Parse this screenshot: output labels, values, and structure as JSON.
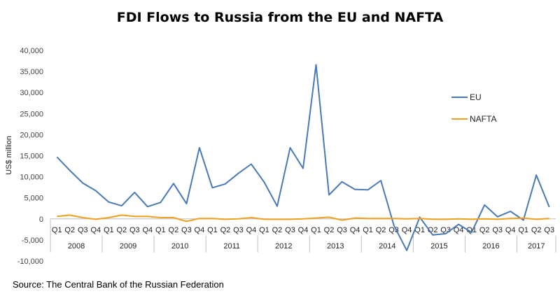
{
  "chart_data": {
    "type": "line",
    "title": "FDI Flows to Russia from the EU and NAFTA",
    "ylabel": "US$ million",
    "xlabel": "",
    "ylim": [
      -10000,
      40000
    ],
    "yticks": [
      -10000,
      -5000,
      0,
      5000,
      10000,
      15000,
      20000,
      25000,
      30000,
      35000,
      40000
    ],
    "ytick_labels": [
      "-10,000",
      "-5,000",
      "0",
      "5,000",
      "10,000",
      "15,000",
      "20,000",
      "25,000",
      "30,000",
      "35,000",
      "40,000"
    ],
    "grid": false,
    "legend_position": "right",
    "quarters": [
      "Q1",
      "Q2",
      "Q3",
      "Q4",
      "Q1",
      "Q2",
      "Q3",
      "Q4",
      "Q1",
      "Q2",
      "Q3",
      "Q4",
      "Q1",
      "Q2",
      "Q3",
      "Q4",
      "Q1",
      "Q2",
      "Q3",
      "Q4",
      "Q1",
      "Q2",
      "Q3",
      "Q4",
      "Q1",
      "Q2",
      "Q3",
      "Q4",
      "Q1",
      "Q2",
      "Q3",
      "Q4",
      "Q1",
      "Q2",
      "Q3",
      "Q4",
      "Q1",
      "Q2",
      "Q3"
    ],
    "years": [
      {
        "label": "2008",
        "quarters": 4
      },
      {
        "label": "2009",
        "quarters": 4
      },
      {
        "label": "2010",
        "quarters": 4
      },
      {
        "label": "2011",
        "quarters": 4
      },
      {
        "label": "2012",
        "quarters": 4
      },
      {
        "label": "2013",
        "quarters": 4
      },
      {
        "label": "2014",
        "quarters": 4
      },
      {
        "label": "2015",
        "quarters": 4
      },
      {
        "label": "2016",
        "quarters": 4
      },
      {
        "label": "2017",
        "quarters": 3
      }
    ],
    "series": [
      {
        "name": "EU",
        "color": "#4a7ab5",
        "values": [
          14700,
          11500,
          8500,
          6700,
          4000,
          3100,
          6300,
          2900,
          3900,
          8400,
          3600,
          16900,
          7400,
          8300,
          10800,
          13000,
          8700,
          3000,
          16900,
          12000,
          36600,
          5700,
          8800,
          7000,
          6900,
          9100,
          -1500,
          -7500,
          400,
          -3800,
          -3500,
          -1300,
          -3200,
          3300,
          500,
          1800,
          -300,
          10400,
          2800
        ]
      },
      {
        "name": "NAFTA",
        "color": "#f0a01e",
        "values": [
          600,
          900,
          300,
          -100,
          300,
          900,
          600,
          600,
          300,
          300,
          -600,
          100,
          100,
          -100,
          0,
          300,
          -100,
          -100,
          -100,
          0,
          200,
          400,
          -300,
          200,
          100,
          100,
          100,
          0,
          100,
          -100,
          -100,
          0,
          -100,
          0,
          -100,
          100,
          200,
          -100,
          100
        ]
      }
    ],
    "source": "Source: The Central Bank of the Russian Federation"
  }
}
